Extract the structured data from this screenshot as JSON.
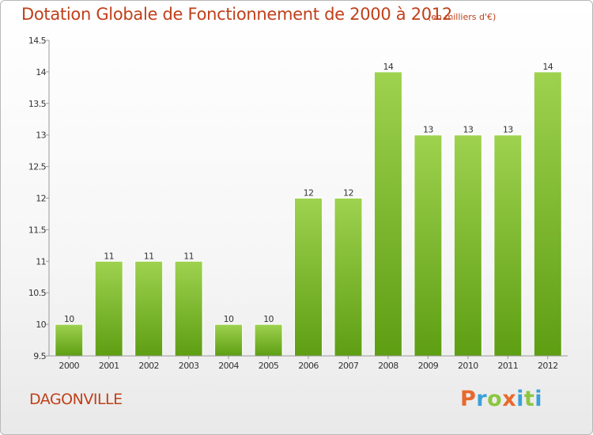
{
  "chart_data": {
    "type": "bar",
    "title": "Dotation Globale de Fonctionnement de 2000 à 2012",
    "subtitle": "(en milliers d'€)",
    "categories": [
      "2000",
      "2001",
      "2002",
      "2003",
      "2004",
      "2005",
      "2006",
      "2007",
      "2008",
      "2009",
      "2010",
      "2011",
      "2012"
    ],
    "values": [
      10,
      11,
      11,
      11,
      10,
      10,
      12,
      12,
      14,
      13,
      13,
      13,
      14
    ],
    "data_labels": [
      "10",
      "11",
      "11",
      "11",
      "10",
      "10",
      "12",
      "12",
      "14",
      "13",
      "13",
      "13",
      "14"
    ],
    "ylim": [
      9.5,
      14.5
    ],
    "yticks": [
      9.5,
      10,
      10.5,
      11,
      11.5,
      12,
      12.5,
      13,
      13.5,
      14,
      14.5
    ],
    "ytick_labels": [
      "9.5",
      "10",
      "10.5",
      "11",
      "11.5",
      "12",
      "12.5",
      "13",
      "13.5",
      "14",
      "14.5"
    ],
    "xlabel": "",
    "ylabel": "",
    "grid": false,
    "colors": {
      "bar_top": "#9ed24f",
      "bar_bottom": "#5e9e13",
      "title": "#c0401a"
    }
  },
  "footer": {
    "commune": "DAGONVILLE",
    "logo_letters": [
      {
        "char": "P",
        "color": "#e8692d"
      },
      {
        "char": "r",
        "color": "#3aa0d9"
      },
      {
        "char": "o",
        "color": "#8dc63f"
      },
      {
        "char": "x",
        "color": "#e8692d"
      },
      {
        "char": "i",
        "color": "#3aa0d9"
      },
      {
        "char": "t",
        "color": "#8dc63f"
      },
      {
        "char": "i",
        "color": "#3aa0d9"
      }
    ]
  }
}
